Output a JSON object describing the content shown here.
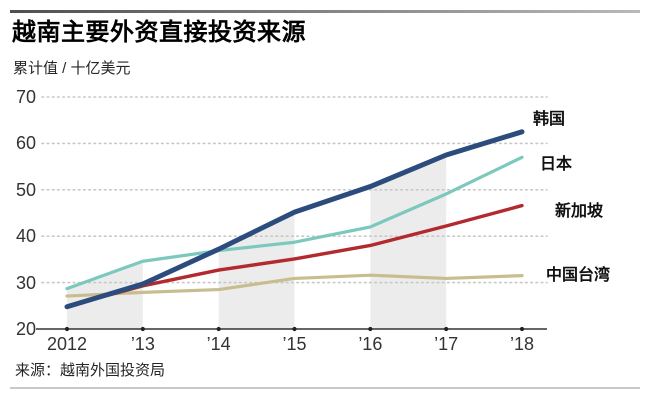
{
  "header": {
    "title": "越南主要外资直接投资来源",
    "subtitle": "累计值 / 十亿美元"
  },
  "footer": {
    "source": "来源：越南外国投资局"
  },
  "chart_data": {
    "type": "line",
    "title": "越南主要外资直接投资来源",
    "subtitle": "累计值 / 十亿美元",
    "x": [
      2012,
      2013,
      2014,
      2015,
      2016,
      2017,
      2018
    ],
    "x_tick_labels": [
      "2012",
      "’13",
      "’14",
      "’15",
      "’16",
      "’17",
      "’18"
    ],
    "y_ticks": [
      20,
      30,
      40,
      50,
      60,
      70
    ],
    "ylim": [
      20,
      70
    ],
    "grid": "horizontal-dotted",
    "legend_position": "right",
    "series": [
      {
        "name": "韩国",
        "color": "#2b4c7c",
        "width": 5,
        "values": [
          24.8,
          29.7,
          37.2,
          45.2,
          50.7,
          57.5,
          62.5
        ]
      },
      {
        "name": "日本",
        "color": "#7cc8bd",
        "width": 3.2,
        "values": [
          28.7,
          34.6,
          36.9,
          38.7,
          42.0,
          49.1,
          57.0
        ]
      },
      {
        "name": "新加坡",
        "color": "#b2292e",
        "width": 3.4,
        "values": [
          24.9,
          29.3,
          32.7,
          35.1,
          38.0,
          42.2,
          46.6
        ]
      },
      {
        "name": "中国台湾",
        "color": "#c9bd8f",
        "width": 3.2,
        "values": [
          27.1,
          27.9,
          28.5,
          30.9,
          31.6,
          30.9,
          31.5
        ]
      }
    ],
    "band_intervals": [
      [
        2012,
        2013
      ],
      [
        2014,
        2015
      ],
      [
        2016,
        2017
      ]
    ],
    "band_color": "#ececec",
    "gridline_color": "#c8c8c8",
    "axis_color": "#333333"
  }
}
